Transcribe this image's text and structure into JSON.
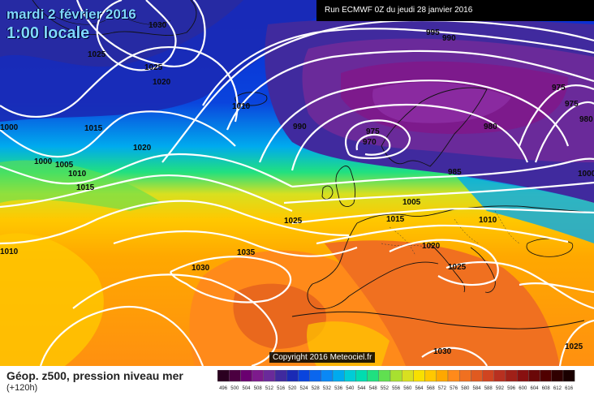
{
  "header": {
    "date": "mardi 2 février 2016",
    "time": "1:00 locale",
    "run": "Run ECMWF 0Z du jeudi 28 janvier 2016"
  },
  "footer": {
    "title": "Géop. z500, pression niveau mer",
    "subtitle": "(+120h)",
    "copyright": "Copyright 2016 Meteociel.fr"
  },
  "legend": {
    "values": [
      "496",
      "500",
      "504",
      "508",
      "512",
      "516",
      "520",
      "524",
      "528",
      "532",
      "536",
      "540",
      "544",
      "548",
      "552",
      "556",
      "560",
      "564",
      "568",
      "572",
      "576",
      "580",
      "584",
      "588",
      "592",
      "596",
      "600",
      "604",
      "608",
      "612",
      "616"
    ],
    "colors": [
      "#2a0020",
      "#4b0040",
      "#6a0070",
      "#7d1a8c",
      "#6a2a9a",
      "#402a9e",
      "#1a2ab5",
      "#0a44dd",
      "#0a66ee",
      "#0a88f5",
      "#00aaee",
      "#00ccd6",
      "#00dcb0",
      "#20e080",
      "#60e050",
      "#a8e030",
      "#d8e020",
      "#f8e000",
      "#ffc800",
      "#ffa800",
      "#ff8a1a",
      "#f07020",
      "#e05a20",
      "#d04420",
      "#b83020",
      "#a02018",
      "#881010",
      "#6a0808",
      "#500000",
      "#300000",
      "#1a0000"
    ]
  },
  "isobars": [
    {
      "text": "1030"
    },
    {
      "text": "1025"
    },
    {
      "text": "1025"
    },
    {
      "text": "1020"
    },
    {
      "text": "1000"
    },
    {
      "text": "1015"
    },
    {
      "text": "1020"
    },
    {
      "text": "1000"
    },
    {
      "text": "1005"
    },
    {
      "text": "1010"
    },
    {
      "text": "1015"
    },
    {
      "text": "1010"
    },
    {
      "text": "1010"
    },
    {
      "text": "995"
    },
    {
      "text": "990"
    },
    {
      "text": "990"
    },
    {
      "text": "975"
    },
    {
      "text": "970"
    },
    {
      "text": "975"
    },
    {
      "text": "975"
    },
    {
      "text": "980"
    },
    {
      "text": "980"
    },
    {
      "text": "985"
    },
    {
      "text": "1000"
    },
    {
      "text": "1005"
    },
    {
      "text": "1025"
    },
    {
      "text": "1015"
    },
    {
      "text": "1010"
    },
    {
      "text": "1035"
    },
    {
      "text": "1030"
    },
    {
      "text": "1020"
    },
    {
      "text": "1025"
    },
    {
      "text": "1030"
    },
    {
      "text": "1025"
    }
  ],
  "colors": {
    "isobar": "#ffffff",
    "coast": "#111111"
  }
}
